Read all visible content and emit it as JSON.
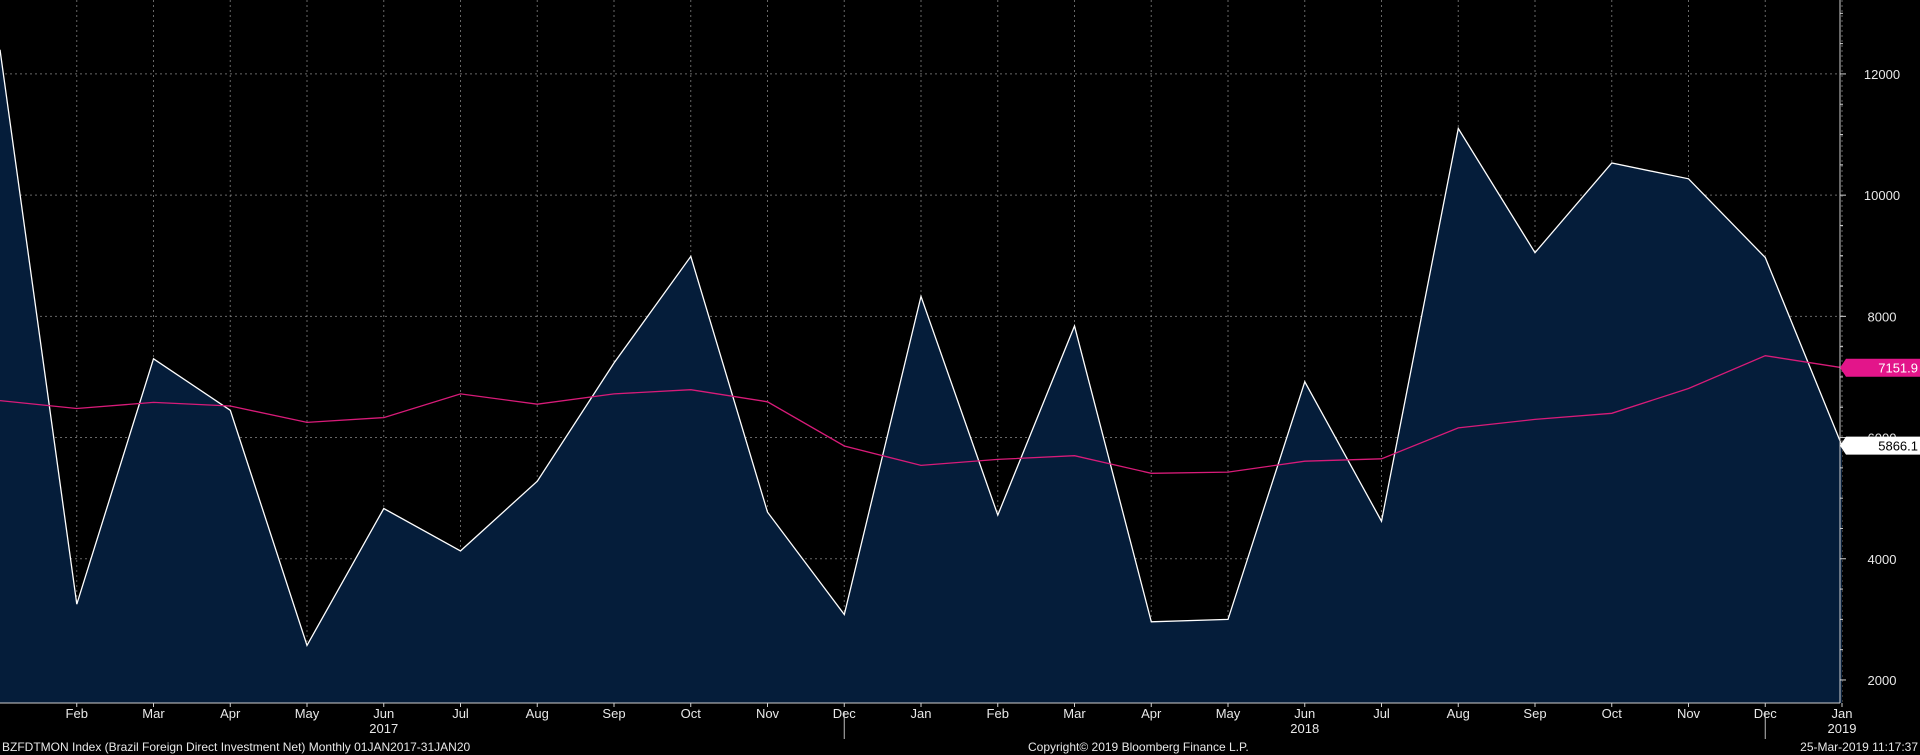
{
  "colors": {
    "background": "#000000",
    "area_fill": "#051d3a",
    "series_line": "#ffffff",
    "moving_avg_line": "#d81b79",
    "grid": "#8a8a8a",
    "axis_text": "#e8e8e8",
    "last_value_badge_bg": "#ffffff",
    "last_value_badge_text": "#000000",
    "ma_badge_bg": "#e3158a",
    "ma_badge_text": "#ffffff"
  },
  "footer": {
    "left": "BZFDTMON Index (Brazil Foreign Direct Investment Net)  Monthly 01JAN2017-31JAN20",
    "center": "Copyright© 2019 Bloomberg Finance L.P.",
    "right": "25-Mar-2019 11:17:37"
  },
  "chart_data": {
    "type": "area",
    "x": [
      "Jan 2017",
      "Feb 2017",
      "Mar 2017",
      "Apr 2017",
      "May 2017",
      "Jun 2017",
      "Jul 2017",
      "Aug 2017",
      "Sep 2017",
      "Oct 2017",
      "Nov 2017",
      "Dec 2017",
      "Jan 2018",
      "Feb 2018",
      "Mar 2018",
      "Apr 2018",
      "May 2018",
      "Jun 2018",
      "Jul 2018",
      "Aug 2018",
      "Sep 2018",
      "Oct 2018",
      "Nov 2018",
      "Dec 2018",
      "Jan 2019"
    ],
    "x_tick_labels": [
      "Feb",
      "Mar",
      "Apr",
      "May",
      "Jun",
      "Jul",
      "Aug",
      "Sep",
      "Oct",
      "Nov",
      "Dec",
      "Jan",
      "Feb",
      "Mar",
      "Apr",
      "May",
      "Jun",
      "Jul",
      "Aug",
      "Sep",
      "Oct",
      "Nov",
      "Dec",
      "Jan"
    ],
    "x_tick_index_start": 1,
    "year_labels": [
      {
        "label": "2017",
        "index": 5
      },
      {
        "label": "2018",
        "index": 17
      },
      {
        "label": "2019",
        "index": 24
      }
    ],
    "year_dividers": [
      11,
      23
    ],
    "series": [
      {
        "values": [
          12400,
          3250,
          7300,
          6450,
          2570,
          4830,
          4130,
          5280,
          7230,
          8990,
          4770,
          3080,
          8330,
          4720,
          7840,
          2960,
          3000,
          6920,
          4620,
          11100,
          9050,
          10530,
          10270,
          8970,
          5866.1
        ],
        "style": "area"
      },
      {
        "values": [
          6610,
          6480,
          6580,
          6520,
          6250,
          6330,
          6720,
          6550,
          6720,
          6790,
          6590,
          5860,
          5540,
          5640,
          5700,
          5410,
          5430,
          5610,
          5650,
          6160,
          6300,
          6400,
          6810,
          7350,
          7151.9
        ],
        "style": "line"
      }
    ],
    "last_value_labels": [
      "5866.1",
      "7151.9"
    ],
    "y_tick_labels": [
      "2000",
      "4000",
      "6000",
      "8000",
      "10000",
      "12000"
    ],
    "ylim": [
      1620,
      13220
    ],
    "grid": true
  }
}
